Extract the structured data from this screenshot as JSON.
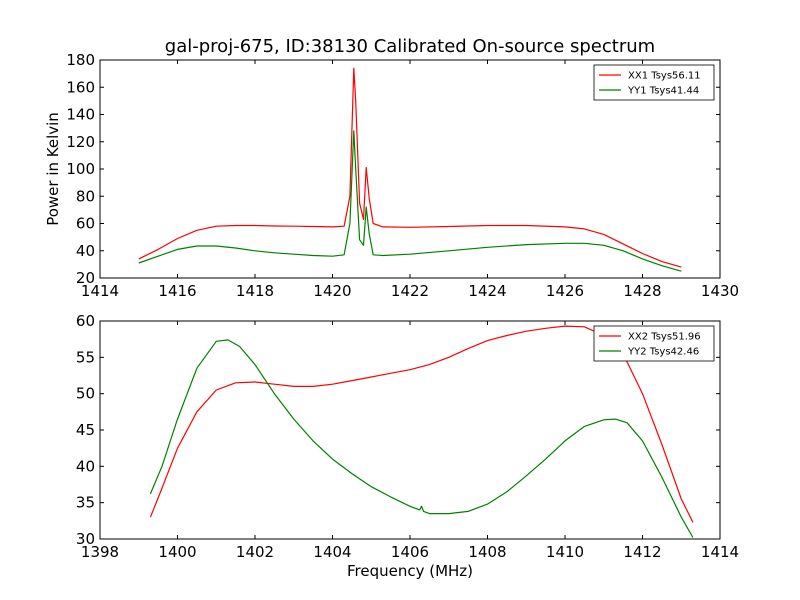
{
  "chart_data": [
    {
      "type": "line",
      "title": "gal-proj-675, ID:38130 Calibrated On-source spectrum",
      "xlabel": "",
      "ylabel": "Power in Kelvin",
      "xlim": [
        1414,
        1430
      ],
      "ylim": [
        20,
        180
      ],
      "xticks": [
        1414,
        1416,
        1418,
        1420,
        1422,
        1424,
        1426,
        1428,
        1430
      ],
      "yticks": [
        20,
        40,
        60,
        80,
        100,
        120,
        140,
        160,
        180
      ],
      "legend_position": "top-right",
      "grid": false,
      "series": [
        {
          "name": "XX1 Tsys56.11",
          "color": "#ff0000",
          "x": [
            1415.0,
            1415.5,
            1416.0,
            1416.5,
            1417.0,
            1417.5,
            1418.0,
            1418.5,
            1419.0,
            1419.5,
            1420.0,
            1420.3,
            1420.45,
            1420.55,
            1420.6,
            1420.7,
            1420.8,
            1420.87,
            1420.95,
            1421.05,
            1421.3,
            1422.0,
            1423.0,
            1424.0,
            1425.0,
            1426.0,
            1426.5,
            1427.0,
            1427.5,
            1428.0,
            1428.5,
            1429.0
          ],
          "y": [
            34,
            41,
            49,
            55,
            58,
            58.5,
            58.5,
            58.2,
            58,
            57.8,
            57.5,
            58,
            80,
            174,
            150,
            75,
            63,
            101,
            78,
            60,
            57.5,
            57.2,
            57.8,
            58.5,
            58.5,
            57.5,
            56,
            52,
            45,
            38,
            32,
            28
          ]
        },
        {
          "name": "YY1 Tsys41.44",
          "color": "#008000",
          "x": [
            1415.0,
            1415.5,
            1416.0,
            1416.5,
            1417.0,
            1417.5,
            1418.0,
            1418.5,
            1419.0,
            1419.5,
            1420.0,
            1420.3,
            1420.45,
            1420.55,
            1420.6,
            1420.7,
            1420.8,
            1420.87,
            1420.95,
            1421.05,
            1421.3,
            1422.0,
            1423.0,
            1424.0,
            1425.0,
            1426.0,
            1426.5,
            1427.0,
            1427.5,
            1428.0,
            1428.5,
            1429.0
          ],
          "y": [
            31,
            36,
            41,
            43.5,
            43.5,
            42,
            40,
            38.5,
            37.5,
            36.5,
            36,
            37,
            60,
            128,
            100,
            48,
            44,
            72,
            52,
            37,
            36.5,
            37.5,
            40,
            42.5,
            44.5,
            45.5,
            45.5,
            44,
            40,
            34,
            29,
            25
          ]
        }
      ]
    },
    {
      "type": "line",
      "title": "",
      "xlabel": "Frequency (MHz)",
      "ylabel": "",
      "xlim": [
        1398,
        1414
      ],
      "ylim": [
        30,
        60
      ],
      "xticks": [
        1398,
        1400,
        1402,
        1404,
        1406,
        1408,
        1410,
        1412,
        1414
      ],
      "yticks": [
        30,
        35,
        40,
        45,
        50,
        55,
        60
      ],
      "legend_position": "top-right",
      "grid": false,
      "series": [
        {
          "name": "XX2 Tsys51.96",
          "color": "#ff0000",
          "x": [
            1399.3,
            1399.6,
            1400.0,
            1400.5,
            1401.0,
            1401.5,
            1402.0,
            1402.5,
            1403.0,
            1403.5,
            1404.0,
            1404.5,
            1405.0,
            1405.5,
            1406.0,
            1406.5,
            1407.0,
            1407.5,
            1408.0,
            1408.5,
            1409.0,
            1409.5,
            1410.0,
            1410.5,
            1411.0,
            1411.5,
            1412.0,
            1412.5,
            1413.0,
            1413.3
          ],
          "y": [
            33,
            37,
            42.5,
            47.5,
            50.5,
            51.5,
            51.6,
            51.3,
            51,
            51,
            51.3,
            51.8,
            52.3,
            52.8,
            53.3,
            54,
            55,
            56.2,
            57.3,
            58,
            58.6,
            59,
            59.3,
            59.2,
            58,
            55.5,
            50,
            43,
            35.5,
            32.3
          ]
        },
        {
          "name": "YY2 Tsys42.46",
          "color": "#008000",
          "x": [
            1399.3,
            1399.6,
            1400.0,
            1400.5,
            1401.0,
            1401.3,
            1401.6,
            1402.0,
            1402.5,
            1403.0,
            1403.5,
            1404.0,
            1404.5,
            1405.0,
            1405.5,
            1406.0,
            1406.25,
            1406.3,
            1406.35,
            1406.5,
            1407.0,
            1407.5,
            1408.0,
            1408.5,
            1409.0,
            1409.5,
            1410.0,
            1410.5,
            1411.0,
            1411.3,
            1411.6,
            1412.0,
            1412.5,
            1413.0,
            1413.3
          ],
          "y": [
            36.2,
            40,
            46.5,
            53.5,
            57.2,
            57.4,
            56.5,
            54,
            50,
            46.5,
            43.5,
            41,
            39,
            37.2,
            35.8,
            34.5,
            34,
            34.5,
            33.8,
            33.5,
            33.5,
            33.8,
            34.8,
            36.5,
            38.7,
            41,
            43.5,
            45.5,
            46.4,
            46.5,
            46,
            43.5,
            38.5,
            33,
            30.2
          ]
        }
      ]
    }
  ]
}
